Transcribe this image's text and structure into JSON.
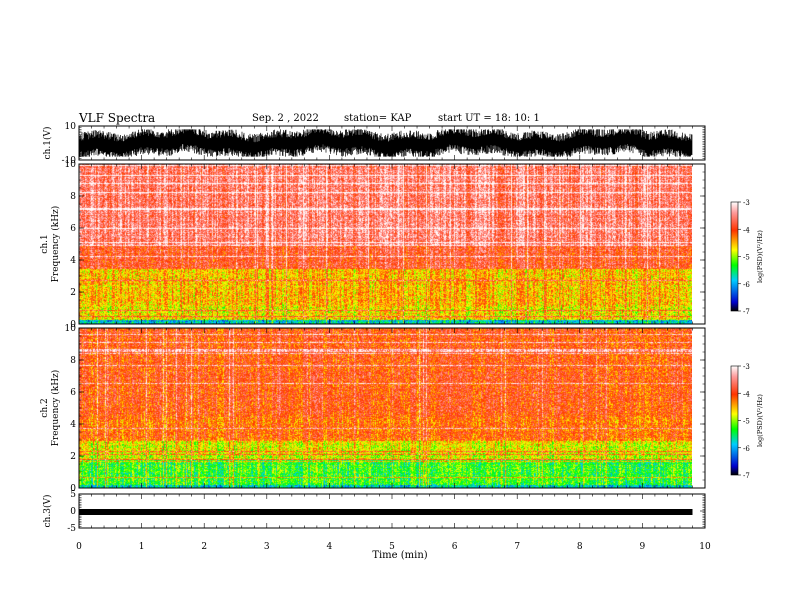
{
  "header": {
    "title": "VLF Spectra",
    "date": "Sep. 2 , 2022",
    "station": "station= KAP",
    "start": "start UT = 18: 10: 1"
  },
  "chart_data": [
    {
      "type": "line",
      "panel": "ch1-waveform",
      "ylabel": "ch.1(V)",
      "ylim": [
        -10,
        10
      ],
      "yticks": [
        "10",
        "-10"
      ],
      "xlim": [
        0,
        10
      ],
      "x_extent": 9.8,
      "amplitude_range": [
        -8,
        8
      ]
    },
    {
      "type": "heatmap",
      "panel": "ch1-spectrogram",
      "ylabel": [
        "ch.1",
        "Frequency (kHz)"
      ],
      "ylim": [
        0,
        10
      ],
      "yticks": [
        "0",
        "2",
        "4",
        "6",
        "8",
        "10"
      ],
      "xlim": [
        0,
        10
      ],
      "x_extent": 9.8,
      "colorbar": {
        "label": "log(PSD)(V²/Hz)",
        "range": [
          -7,
          -3
        ],
        "ticks": [
          "-3",
          "-4",
          "-5",
          "-6",
          "-7"
        ]
      }
    },
    {
      "type": "heatmap",
      "panel": "ch2-spectrogram",
      "ylabel": [
        "ch.2",
        "Frequency (kHz)"
      ],
      "ylim": [
        0,
        10
      ],
      "yticks": [
        "0",
        "2",
        "4",
        "6",
        "8",
        "10"
      ],
      "xlim": [
        0,
        10
      ],
      "x_extent": 9.8,
      "colorbar": {
        "label": "log(PSD)(V²/Hz)",
        "range": [
          -7,
          -3
        ],
        "ticks": [
          "-3",
          "-4",
          "-5",
          "-6",
          "-7"
        ]
      }
    },
    {
      "type": "line",
      "panel": "ch3-waveform",
      "ylabel": "ch.3(V)",
      "ylim": [
        -5,
        5
      ],
      "yticks": [
        "5",
        "0",
        "-5"
      ],
      "xlim": [
        0,
        10
      ],
      "x_extent": 9.8,
      "level": -0.3,
      "xlabel": "Time (min)",
      "xticks": [
        "0",
        "1",
        "2",
        "3",
        "4",
        "5",
        "6",
        "7",
        "8",
        "9",
        "10"
      ]
    }
  ]
}
